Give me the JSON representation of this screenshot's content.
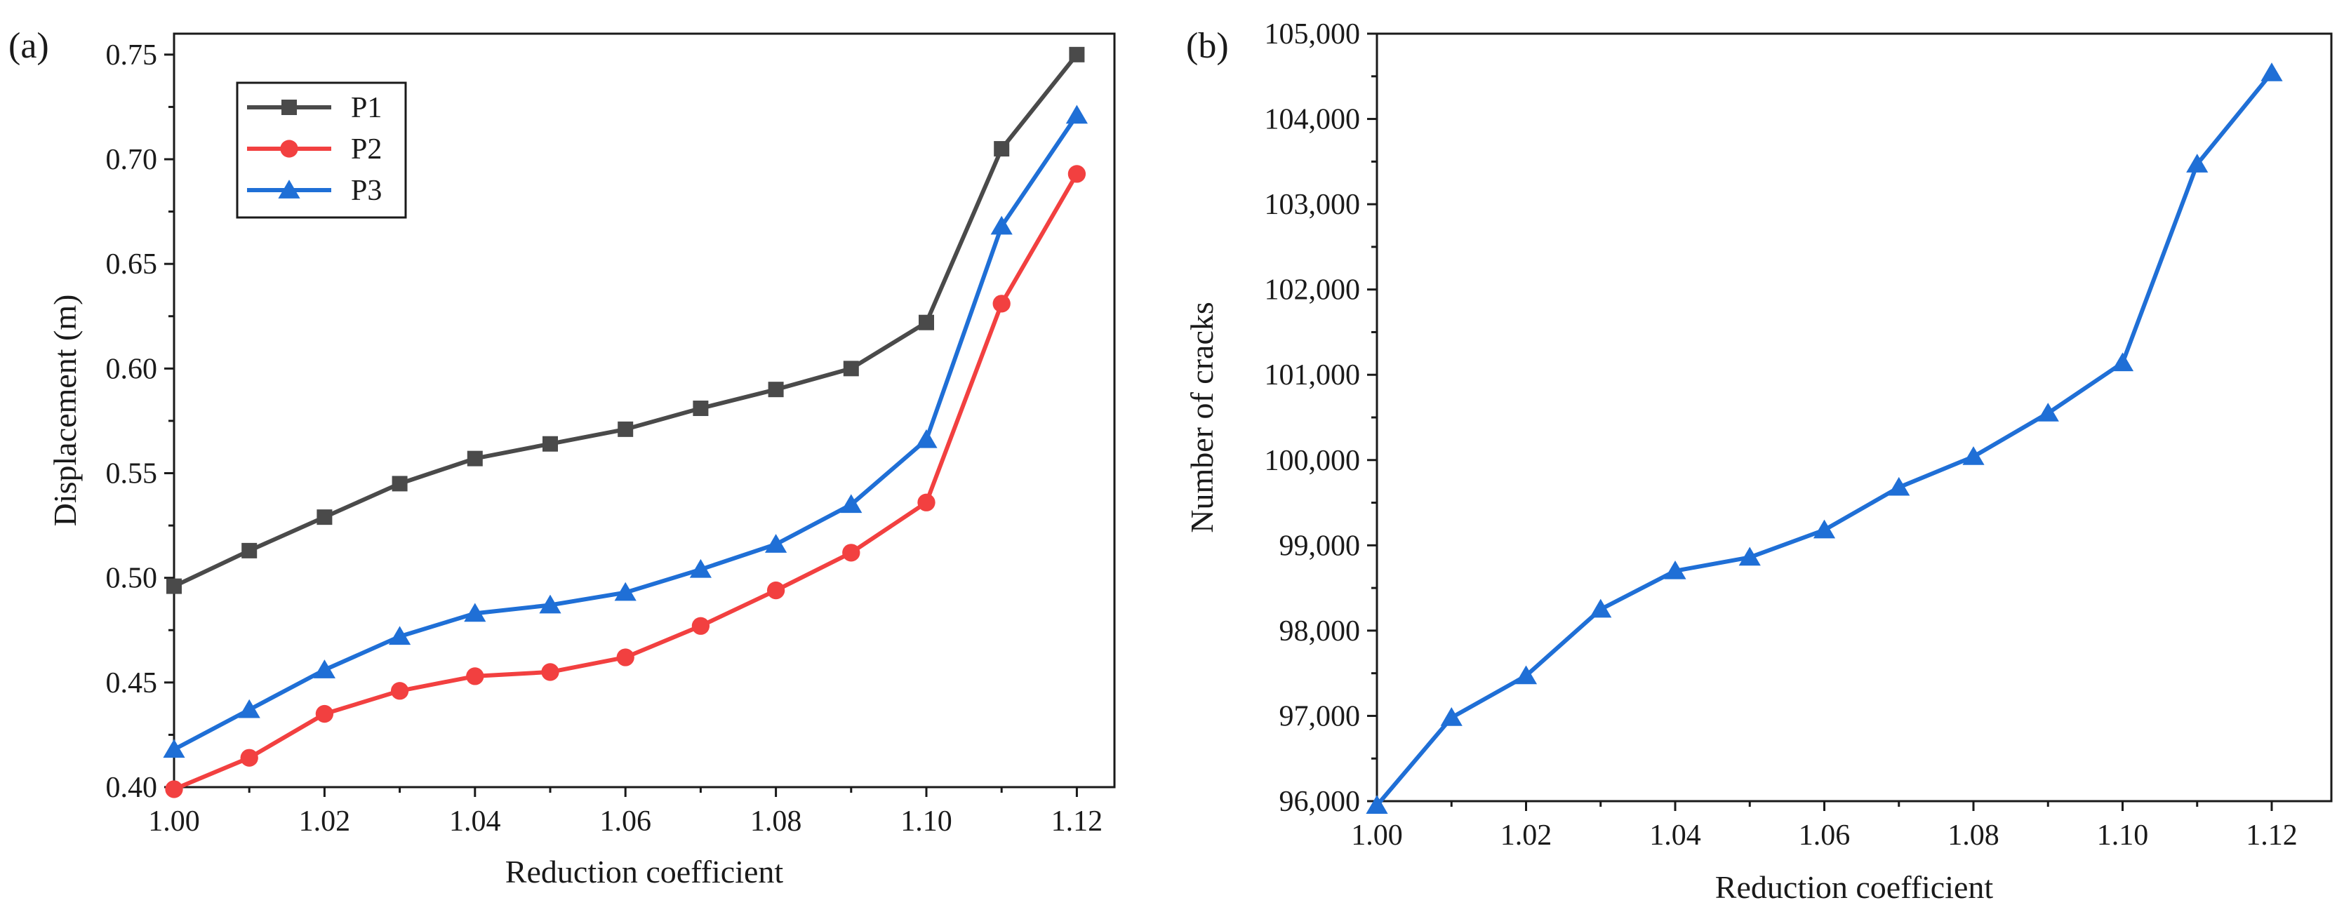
{
  "chart_data": [
    {
      "panel_label": "(a)",
      "type": "line",
      "x": [
        1.0,
        1.01,
        1.02,
        1.03,
        1.04,
        1.05,
        1.06,
        1.07,
        1.08,
        1.09,
        1.1,
        1.11,
        1.12
      ],
      "x_tick_labels": [
        "1.00",
        "1.02",
        "1.04",
        "1.06",
        "1.08",
        "1.10",
        "1.12"
      ],
      "y_tick_labels": [
        "0.40",
        "0.45",
        "0.50",
        "0.55",
        "0.60",
        "0.65",
        "0.70",
        "0.75"
      ],
      "xlim": [
        1.0,
        1.125
      ],
      "ylim": [
        0.4,
        0.76
      ],
      "xlabel": "Reduction coefficient",
      "ylabel": "Displacement (m)",
      "legend_position": "top-left",
      "series": [
        {
          "name": "P1",
          "color": "#4a4a4a",
          "marker": "square",
          "values": [
            0.496,
            0.513,
            0.529,
            0.545,
            0.557,
            0.564,
            0.571,
            0.581,
            0.59,
            0.6,
            0.622,
            0.705,
            0.75
          ]
        },
        {
          "name": "P2",
          "color": "#f24040",
          "marker": "circle",
          "values": [
            0.399,
            0.414,
            0.435,
            0.446,
            0.453,
            0.455,
            0.462,
            0.477,
            0.494,
            0.512,
            0.536,
            0.631,
            0.693
          ]
        },
        {
          "name": "P3",
          "color": "#1f6fd6",
          "marker": "triangle",
          "values": [
            0.418,
            0.437,
            0.456,
            0.472,
            0.483,
            0.487,
            0.493,
            0.504,
            0.516,
            0.535,
            0.566,
            0.668,
            0.721
          ]
        }
      ]
    },
    {
      "panel_label": "(b)",
      "type": "line",
      "x": [
        1.0,
        1.01,
        1.02,
        1.03,
        1.04,
        1.05,
        1.06,
        1.07,
        1.08,
        1.09,
        1.1,
        1.11,
        1.12
      ],
      "x_tick_labels": [
        "1.00",
        "1.02",
        "1.04",
        "1.06",
        "1.08",
        "1.10",
        "1.12"
      ],
      "y_tick_labels": [
        "96,000",
        "97,000",
        "98,000",
        "99,000",
        "100,000",
        "101,000",
        "102,000",
        "103,000",
        "104,000",
        "105,000"
      ],
      "xlim": [
        1.0,
        1.128
      ],
      "ylim": [
        96000,
        105000
      ],
      "xlabel": "Reduction coefficient",
      "ylabel": "Number of cracks",
      "series": [
        {
          "name": "cracks",
          "color": "#1f6fd6",
          "marker": "triangle",
          "values": [
            95950,
            96980,
            97470,
            98250,
            98700,
            98860,
            99180,
            99680,
            100040,
            100550,
            101140,
            103470,
            104540
          ]
        }
      ]
    }
  ]
}
